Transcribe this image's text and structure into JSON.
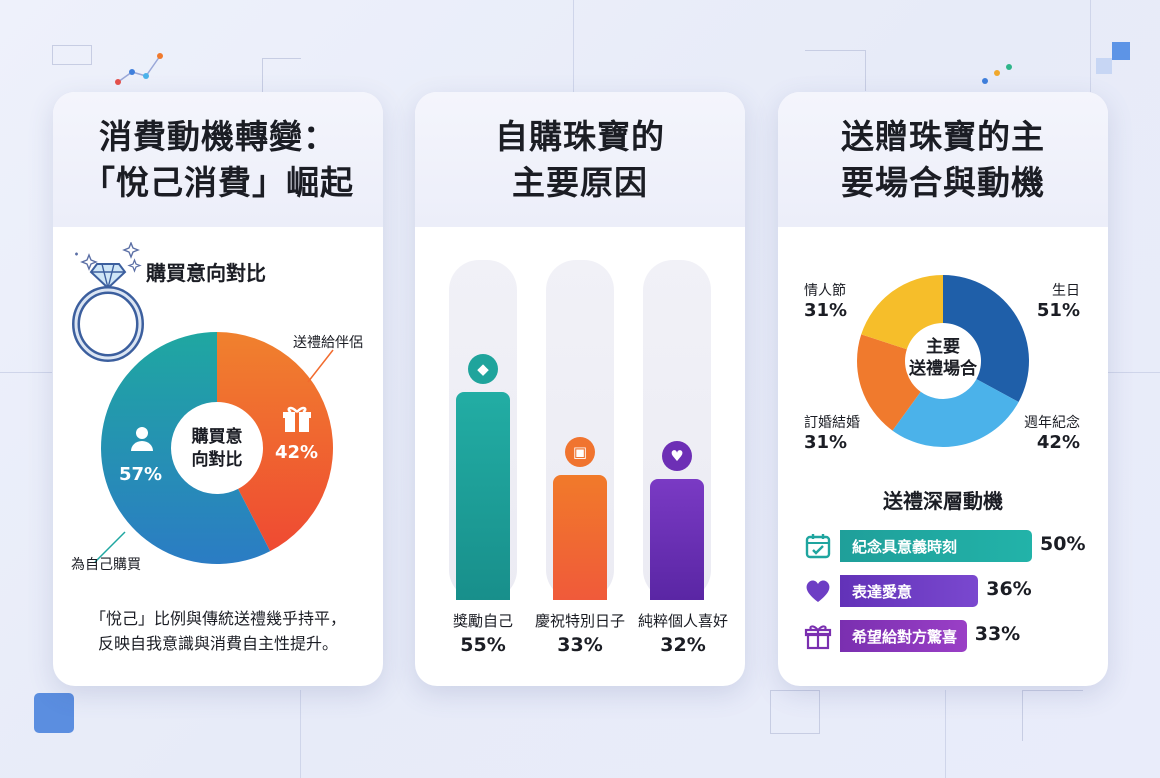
{
  "panel1": {
    "title": "消費動機轉變：\n「悅己消費」崛起",
    "chart_title": "購買意向對比",
    "donut_center": "購買意\n向對比",
    "self_value_text": "57%",
    "gift_value_text": "42%",
    "label_gift": "送禮給伴侶",
    "label_self": "為自己購買",
    "caption": "「悅己」比例與傳統送禮幾乎持平，\n反映自我意識與消費自主性提升。"
  },
  "panel2": {
    "title": "自購珠寶的\n主要原因",
    "bars": [
      {
        "label": "獎勵自己",
        "value_text": "55%"
      },
      {
        "label": "慶祝特別日子",
        "value_text": "33%"
      },
      {
        "label": "純粹個人喜好",
        "value_text": "32%"
      }
    ]
  },
  "panel3": {
    "title": "送贈珠寶的主\n要場合與動機",
    "donut_center": "主要\n送禮場合",
    "occasions": [
      {
        "label": "生日",
        "value_text": "51%"
      },
      {
        "label": "週年紀念",
        "value_text": "42%"
      },
      {
        "label": "訂婚結婚",
        "value_text": "31%"
      },
      {
        "label": "情人節",
        "value_text": "31%"
      }
    ],
    "motives_title": "送禮深層動機",
    "motives": [
      {
        "label": "紀念具意義時刻",
        "value_text": "50%"
      },
      {
        "label": "表達愛意",
        "value_text": "36%"
      },
      {
        "label": "希望給對方驚喜",
        "value_text": "33%"
      }
    ]
  },
  "chart_data": [
    {
      "type": "pie",
      "title": "購買意向對比",
      "categories": [
        "為自己購買",
        "送禮給伴侶"
      ],
      "values": [
        57,
        42
      ],
      "colors": [
        "#1fa7a1",
        "#f26b2e"
      ]
    },
    {
      "type": "bar",
      "title": "自購珠寶的主要原因",
      "categories": [
        "獎勵自己",
        "慶祝特別日子",
        "純粹個人喜好"
      ],
      "values": [
        55,
        33,
        32
      ],
      "ylim": [
        0,
        60
      ],
      "colors": [
        "#1fa49c",
        "#f0742f",
        "#6d2fb5"
      ]
    },
    {
      "type": "pie",
      "title": "送贈珠寶的主要場合與動機",
      "categories": [
        "生日",
        "週年紀念",
        "訂婚結婚",
        "情人節"
      ],
      "values": [
        51,
        42,
        31,
        31
      ],
      "colors": [
        "#1f5fa9",
        "#4bb2ea",
        "#f07a2d",
        "#f6be2a"
      ]
    },
    {
      "type": "bar",
      "title": "送禮深層動機",
      "categories": [
        "紀念具意義時刻",
        "表達愛意",
        "希望給對方驚喜"
      ],
      "values": [
        50,
        36,
        33
      ],
      "colors": [
        "#1fa59f",
        "#6d3ec4",
        "#7a2fb0"
      ]
    }
  ]
}
